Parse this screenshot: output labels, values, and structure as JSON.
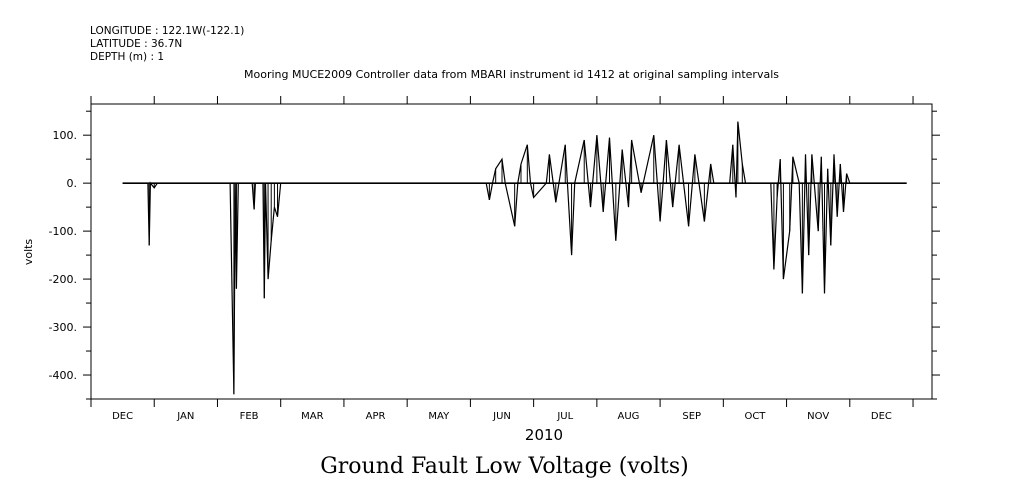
{
  "header": {
    "longitude": "LONGITUDE : 122.1W(-122.1)",
    "latitude": "LATITUDE : 36.7N",
    "depth": "DEPTH (m) : 1"
  },
  "chart_data": {
    "type": "line",
    "title": "Mooring MUCE2009 Controller data from MBARI instrument id 1412 at original sampling intervals",
    "xlabel": "2010",
    "ylabel": "volts",
    "footer_title": "Ground Fault Low Voltage (volts)",
    "ylim": [
      -450,
      165
    ],
    "y_ticks": [
      100,
      0,
      -100,
      -200,
      -300,
      -400
    ],
    "y_tick_labels": [
      "100.",
      "0.",
      "-100.",
      "-200.",
      "-300.",
      "-400."
    ],
    "month_labels": [
      "DEC",
      "JAN",
      "FEB",
      "MAR",
      "APR",
      "MAY",
      "JUN",
      "JUL",
      "AUG",
      "SEP",
      "OCT",
      "NOV",
      "DEC"
    ],
    "x_unit": "month index (0 = start of Dec 2009)",
    "xlim": [
      0,
      13.3
    ],
    "grid": false,
    "color": "#000000",
    "series": [
      {
        "points": [
          [
            0.5,
            0
          ],
          [
            0.9,
            0
          ],
          [
            0.92,
            -130
          ],
          [
            0.94,
            0
          ],
          [
            1.0,
            -10
          ],
          [
            1.05,
            0
          ],
          [
            2.2,
            0
          ],
          [
            2.26,
            -440
          ],
          [
            2.28,
            0
          ],
          [
            2.3,
            -220
          ],
          [
            2.33,
            0
          ],
          [
            2.55,
            0
          ],
          [
            2.58,
            -55
          ],
          [
            2.6,
            0
          ],
          [
            2.72,
            0
          ],
          [
            2.74,
            -240
          ],
          [
            2.76,
            0
          ],
          [
            2.8,
            -200
          ],
          [
            2.85,
            -120
          ],
          [
            2.9,
            -50
          ],
          [
            2.95,
            -70
          ],
          [
            3.0,
            0
          ],
          [
            4.2,
            0
          ],
          [
            5.2,
            0
          ],
          [
            6.25,
            0
          ],
          [
            6.3,
            -35
          ],
          [
            6.35,
            0
          ],
          [
            6.4,
            30
          ],
          [
            6.5,
            50
          ],
          [
            6.55,
            0
          ],
          [
            6.7,
            -90
          ],
          [
            6.75,
            0
          ],
          [
            6.8,
            40
          ],
          [
            6.9,
            80
          ],
          [
            6.95,
            0
          ],
          [
            7.0,
            -30
          ],
          [
            7.2,
            0
          ],
          [
            7.25,
            60
          ],
          [
            7.35,
            -40
          ],
          [
            7.5,
            80
          ],
          [
            7.6,
            -150
          ],
          [
            7.65,
            0
          ],
          [
            7.8,
            90
          ],
          [
            7.9,
            -50
          ],
          [
            8.0,
            100
          ],
          [
            8.1,
            -60
          ],
          [
            8.2,
            95
          ],
          [
            8.3,
            -120
          ],
          [
            8.4,
            70
          ],
          [
            8.5,
            -50
          ],
          [
            8.55,
            90
          ],
          [
            8.7,
            -20
          ],
          [
            8.9,
            100
          ],
          [
            9.0,
            -80
          ],
          [
            9.1,
            90
          ],
          [
            9.2,
            -50
          ],
          [
            9.3,
            80
          ],
          [
            9.45,
            -90
          ],
          [
            9.55,
            60
          ],
          [
            9.7,
            -80
          ],
          [
            9.8,
            40
          ],
          [
            9.85,
            0
          ],
          [
            10.0,
            0
          ],
          [
            10.1,
            0
          ],
          [
            10.15,
            80
          ],
          [
            10.2,
            -30
          ],
          [
            10.23,
            128
          ],
          [
            10.3,
            40
          ],
          [
            10.35,
            0
          ],
          [
            10.5,
            0
          ],
          [
            10.75,
            0
          ],
          [
            10.8,
            -180
          ],
          [
            10.85,
            -30
          ],
          [
            10.9,
            50
          ],
          [
            10.95,
            -200
          ],
          [
            11.05,
            -100
          ],
          [
            11.1,
            55
          ],
          [
            11.2,
            0
          ],
          [
            11.25,
            -230
          ],
          [
            11.3,
            60
          ],
          [
            11.35,
            -150
          ],
          [
            11.4,
            60
          ],
          [
            11.5,
            -100
          ],
          [
            11.55,
            55
          ],
          [
            11.6,
            -230
          ],
          [
            11.65,
            30
          ],
          [
            11.7,
            -130
          ],
          [
            11.75,
            60
          ],
          [
            11.8,
            -70
          ],
          [
            11.85,
            40
          ],
          [
            11.9,
            -60
          ],
          [
            11.95,
            20
          ],
          [
            12.0,
            0
          ]
        ]
      }
    ]
  }
}
